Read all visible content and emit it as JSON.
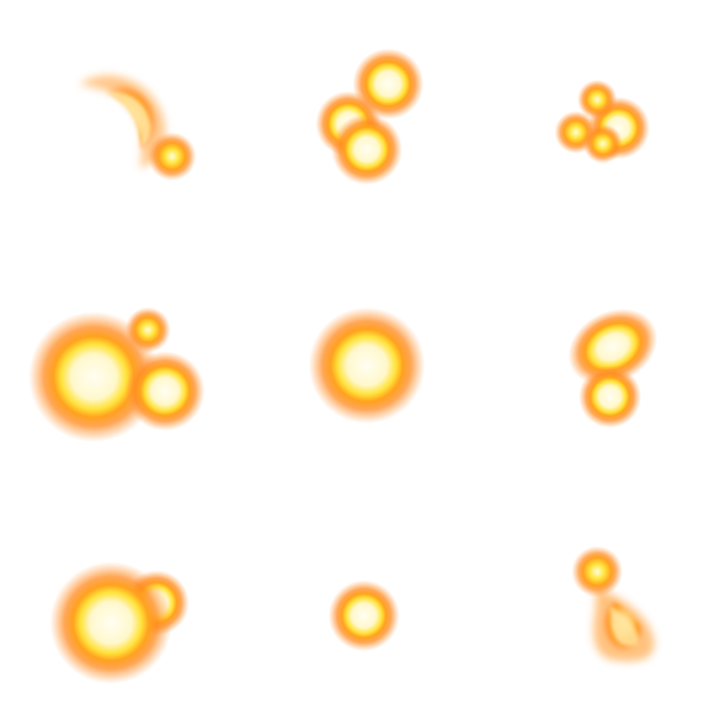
{
  "sprite_sheet": {
    "background_color": "#ffffff",
    "grid": {
      "rows": 3,
      "columns": 3
    },
    "palette": {
      "halo": "#ff8a1f",
      "body": "#ffb020",
      "core": "#ffe640",
      "highlight": "#fffce8"
    },
    "frames": [
      {
        "name": "frame-1",
        "blob_count": 2,
        "shape": "crescent with spark"
      },
      {
        "name": "frame-2",
        "blob_count": 3,
        "shape": "bubble cluster"
      },
      {
        "name": "frame-3",
        "blob_count": 4,
        "shape": "small sparks"
      },
      {
        "name": "frame-4",
        "blob_count": 3,
        "shape": "large bubble with sparks"
      },
      {
        "name": "frame-5",
        "blob_count": 1,
        "shape": "single glowing orb"
      },
      {
        "name": "frame-6",
        "blob_count": 2,
        "shape": "oval with orb"
      },
      {
        "name": "frame-7",
        "blob_count": 2,
        "shape": "large bubble with orb"
      },
      {
        "name": "frame-8",
        "blob_count": 1,
        "shape": "small orb"
      },
      {
        "name": "frame-9",
        "blob_count": 2,
        "shape": "teardrop with spark"
      }
    ]
  }
}
